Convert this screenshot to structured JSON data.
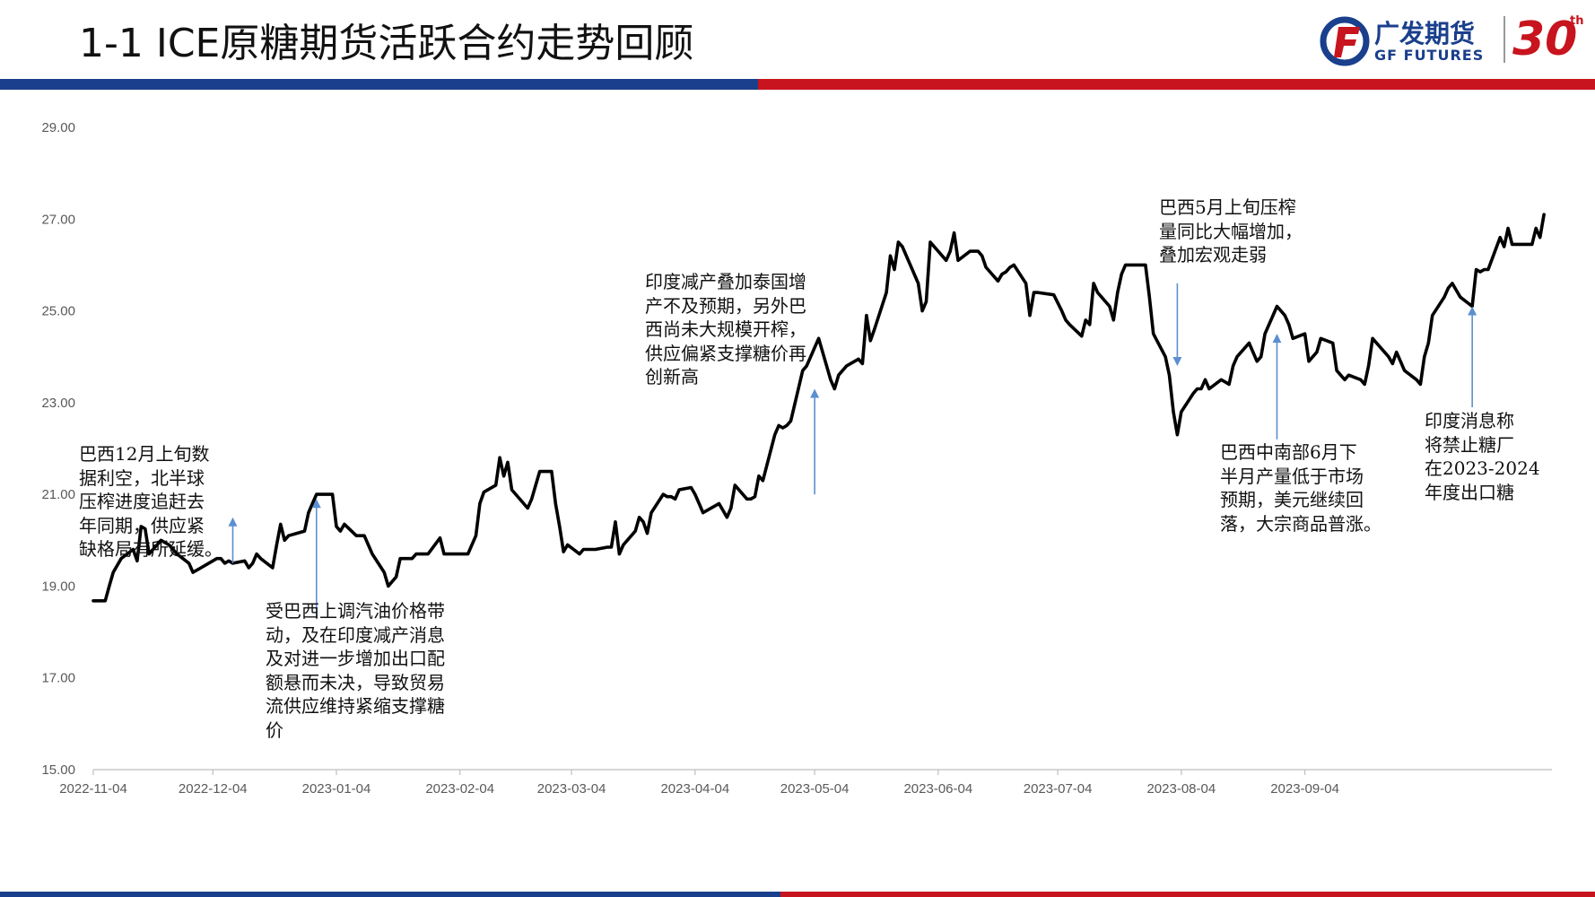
{
  "header": {
    "title": "1-1 ICE原糖期货活跃合约走势回顾",
    "logo_cn": "广发期货",
    "logo_en": "GF FUTURES",
    "logo_anniversary": "30",
    "logo_anniversary_suffix": "th",
    "brand_blue": "#1a3f8c",
    "brand_red": "#c8141e"
  },
  "chart_data": {
    "type": "line",
    "title": "",
    "xlabel": "",
    "ylabel": "",
    "ylim": [
      15,
      29
    ],
    "yticks": [
      "15.00",
      "17.00",
      "19.00",
      "21.00",
      "23.00",
      "25.00",
      "27.00",
      "29.00"
    ],
    "xticks": [
      {
        "date": "2022-11-04",
        "label": "2022-11-04"
      },
      {
        "date": "2022-12-04",
        "label": "2022-12-04"
      },
      {
        "date": "2023-01-04",
        "label": "2023-01-04"
      },
      {
        "date": "2023-02-04",
        "label": "2023-02-04"
      },
      {
        "date": "2023-03-04",
        "label": "2023-03-04"
      },
      {
        "date": "2023-04-04",
        "label": "2023-04-04"
      },
      {
        "date": "2023-05-04",
        "label": "2023-05-04"
      },
      {
        "date": "2023-06-04",
        "label": "2023-06-04"
      },
      {
        "date": "2023-07-04",
        "label": "2023-07-04"
      },
      {
        "date": "2023-08-04",
        "label": "2023-08-04"
      },
      {
        "date": "2023-09-04",
        "label": "2023-09-04"
      }
    ],
    "grid": false,
    "line_color": "#000000",
    "arrow_color": "#5b8fd0",
    "series": [
      {
        "name": "",
        "points": [
          [
            "2022-11-04",
            18.68
          ],
          [
            "2022-11-07",
            18.68
          ],
          [
            "2022-11-08",
            19.0
          ],
          [
            "2022-11-09",
            19.3
          ],
          [
            "2022-11-11",
            19.6
          ],
          [
            "2022-11-14",
            19.8
          ],
          [
            "2022-11-15",
            19.55
          ],
          [
            "2022-11-16",
            20.3
          ],
          [
            "2022-11-17",
            20.25
          ],
          [
            "2022-11-18",
            19.7
          ],
          [
            "2022-11-21",
            20.0
          ],
          [
            "2022-11-23",
            19.9
          ],
          [
            "2022-11-25",
            19.7
          ],
          [
            "2022-11-28",
            19.5
          ],
          [
            "2022-11-29",
            19.3
          ],
          [
            "2022-12-01",
            19.4
          ],
          [
            "2022-12-02",
            19.45
          ],
          [
            "2022-12-05",
            19.6
          ],
          [
            "2022-12-06",
            19.6
          ],
          [
            "2022-12-07",
            19.5
          ],
          [
            "2022-12-08",
            19.55
          ],
          [
            "2022-12-09",
            19.5
          ],
          [
            "2022-12-12",
            19.55
          ],
          [
            "2022-12-13",
            19.4
          ],
          [
            "2022-12-14",
            19.5
          ],
          [
            "2022-12-15",
            19.7
          ],
          [
            "2022-12-16",
            19.6
          ],
          [
            "2022-12-19",
            19.4
          ],
          [
            "2022-12-20",
            19.9
          ],
          [
            "2022-12-21",
            20.35
          ],
          [
            "2022-12-22",
            20.0
          ],
          [
            "2022-12-23",
            20.1
          ],
          [
            "2022-12-27",
            20.2
          ],
          [
            "2022-12-28",
            20.6
          ],
          [
            "2022-12-29",
            20.8
          ],
          [
            "2022-12-30",
            21.0
          ],
          [
            "2023-01-03",
            21.0
          ],
          [
            "2023-01-04",
            20.3
          ],
          [
            "2023-01-05",
            20.2
          ],
          [
            "2023-01-06",
            20.35
          ],
          [
            "2023-01-09",
            20.1
          ],
          [
            "2023-01-10",
            20.1
          ],
          [
            "2023-01-11",
            20.1
          ],
          [
            "2023-01-13",
            19.7
          ],
          [
            "2023-01-16",
            19.3
          ],
          [
            "2023-01-17",
            19.0
          ],
          [
            "2023-01-18",
            19.1
          ],
          [
            "2023-01-19",
            19.2
          ],
          [
            "2023-01-20",
            19.6
          ],
          [
            "2023-01-23",
            19.6
          ],
          [
            "2023-01-24",
            19.7
          ],
          [
            "2023-01-25",
            19.7
          ],
          [
            "2023-01-27",
            19.7
          ],
          [
            "2023-01-30",
            20.05
          ],
          [
            "2023-01-31",
            19.7
          ],
          [
            "2023-02-03",
            19.7
          ],
          [
            "2023-02-06",
            19.7
          ],
          [
            "2023-02-08",
            20.1
          ],
          [
            "2023-02-09",
            20.8
          ],
          [
            "2023-02-10",
            21.05
          ],
          [
            "2023-02-13",
            21.2
          ],
          [
            "2023-02-14",
            21.8
          ],
          [
            "2023-02-15",
            21.4
          ],
          [
            "2023-02-16",
            21.7
          ],
          [
            "2023-02-17",
            21.1
          ],
          [
            "2023-02-21",
            20.7
          ],
          [
            "2023-02-22",
            20.9
          ],
          [
            "2023-02-24",
            21.5
          ],
          [
            "2023-02-27",
            21.5
          ],
          [
            "2023-02-28",
            20.8
          ],
          [
            "2023-03-01",
            20.3
          ],
          [
            "2023-03-02",
            19.75
          ],
          [
            "2023-03-03",
            19.9
          ],
          [
            "2023-03-06",
            19.7
          ],
          [
            "2023-03-07",
            19.8
          ],
          [
            "2023-03-08",
            19.8
          ],
          [
            "2023-03-10",
            19.8
          ],
          [
            "2023-03-13",
            19.85
          ],
          [
            "2023-03-14",
            19.85
          ],
          [
            "2023-03-15",
            20.4
          ],
          [
            "2023-03-16",
            19.7
          ],
          [
            "2023-03-17",
            19.9
          ],
          [
            "2023-03-20",
            20.2
          ],
          [
            "2023-03-21",
            20.5
          ],
          [
            "2023-03-22",
            20.4
          ],
          [
            "2023-03-23",
            20.15
          ],
          [
            "2023-03-24",
            20.6
          ],
          [
            "2023-03-27",
            21.0
          ],
          [
            "2023-03-28",
            20.95
          ],
          [
            "2023-03-29",
            20.95
          ],
          [
            "2023-03-30",
            20.9
          ],
          [
            "2023-03-31",
            21.1
          ],
          [
            "2023-04-03",
            21.15
          ],
          [
            "2023-04-04",
            21.0
          ],
          [
            "2023-04-05",
            20.8
          ],
          [
            "2023-04-06",
            20.6
          ],
          [
            "2023-04-10",
            20.8
          ],
          [
            "2023-04-12",
            20.5
          ],
          [
            "2023-04-13",
            20.7
          ],
          [
            "2023-04-14",
            21.2
          ],
          [
            "2023-04-17",
            20.9
          ],
          [
            "2023-04-18",
            20.9
          ],
          [
            "2023-04-19",
            20.95
          ],
          [
            "2023-04-20",
            21.4
          ],
          [
            "2023-04-21",
            21.3
          ],
          [
            "2023-04-24",
            22.3
          ],
          [
            "2023-04-25",
            22.5
          ],
          [
            "2023-04-26",
            22.45
          ],
          [
            "2023-04-27",
            22.5
          ],
          [
            "2023-04-28",
            22.6
          ],
          [
            "2023-05-01",
            23.7
          ],
          [
            "2023-05-02",
            23.8
          ],
          [
            "2023-05-03",
            24.0
          ],
          [
            "2023-05-04",
            24.2
          ],
          [
            "2023-05-05",
            24.4
          ],
          [
            "2023-05-08",
            23.5
          ],
          [
            "2023-05-09",
            23.3
          ],
          [
            "2023-05-10",
            23.6
          ],
          [
            "2023-05-12",
            23.8
          ],
          [
            "2023-05-15",
            23.95
          ],
          [
            "2023-05-16",
            23.85
          ],
          [
            "2023-05-17",
            24.9
          ],
          [
            "2023-05-18",
            24.35
          ],
          [
            "2023-05-19",
            24.6
          ],
          [
            "2023-05-22",
            25.4
          ],
          [
            "2023-05-23",
            26.2
          ],
          [
            "2023-05-24",
            25.9
          ],
          [
            "2023-05-25",
            26.5
          ],
          [
            "2023-05-26",
            26.4
          ],
          [
            "2023-05-30",
            25.6
          ],
          [
            "2023-05-31",
            25.0
          ],
          [
            "2023-06-01",
            25.2
          ],
          [
            "2023-06-02",
            26.5
          ],
          [
            "2023-06-05",
            26.2
          ],
          [
            "2023-06-06",
            26.1
          ],
          [
            "2023-06-07",
            26.3
          ],
          [
            "2023-06-08",
            26.7
          ],
          [
            "2023-06-09",
            26.1
          ],
          [
            "2023-06-12",
            26.3
          ],
          [
            "2023-06-14",
            26.3
          ],
          [
            "2023-06-15",
            26.2
          ],
          [
            "2023-06-16",
            25.95
          ],
          [
            "2023-06-19",
            25.65
          ],
          [
            "2023-06-20",
            25.8
          ],
          [
            "2023-06-21",
            25.85
          ],
          [
            "2023-06-22",
            25.95
          ],
          [
            "2023-06-23",
            26.0
          ],
          [
            "2023-06-26",
            25.6
          ],
          [
            "2023-06-27",
            24.9
          ],
          [
            "2023-06-28",
            25.4
          ],
          [
            "2023-06-29",
            25.4
          ],
          [
            "2023-07-03",
            25.35
          ],
          [
            "2023-07-05",
            25.0
          ],
          [
            "2023-07-06",
            24.8
          ],
          [
            "2023-07-07",
            24.7
          ],
          [
            "2023-07-10",
            24.45
          ],
          [
            "2023-07-11",
            24.8
          ],
          [
            "2023-07-12",
            24.7
          ],
          [
            "2023-07-13",
            25.6
          ],
          [
            "2023-07-14",
            25.4
          ],
          [
            "2023-07-17",
            25.1
          ],
          [
            "2023-07-18",
            24.8
          ],
          [
            "2023-07-19",
            25.4
          ],
          [
            "2023-07-20",
            25.8
          ],
          [
            "2023-07-21",
            26.0
          ],
          [
            "2023-07-24",
            26.0
          ],
          [
            "2023-07-25",
            26.0
          ],
          [
            "2023-07-26",
            26.0
          ],
          [
            "2023-07-27",
            25.3
          ],
          [
            "2023-07-28",
            24.5
          ],
          [
            "2023-07-31",
            24.0
          ],
          [
            "2023-08-01",
            23.6
          ],
          [
            "2023-08-02",
            22.8
          ],
          [
            "2023-08-03",
            22.3
          ],
          [
            "2023-08-04",
            22.8
          ],
          [
            "2023-08-07",
            23.2
          ],
          [
            "2023-08-08",
            23.3
          ],
          [
            "2023-08-09",
            23.3
          ],
          [
            "2023-08-10",
            23.5
          ],
          [
            "2023-08-11",
            23.3
          ],
          [
            "2023-08-14",
            23.5
          ],
          [
            "2023-08-15",
            23.45
          ],
          [
            "2023-08-16",
            23.4
          ],
          [
            "2023-08-17",
            23.8
          ],
          [
            "2023-08-18",
            24.0
          ],
          [
            "2023-08-21",
            24.3
          ],
          [
            "2023-08-22",
            24.1
          ],
          [
            "2023-08-23",
            23.9
          ],
          [
            "2023-08-24",
            24.0
          ],
          [
            "2023-08-25",
            24.5
          ],
          [
            "2023-08-28",
            25.1
          ],
          [
            "2023-08-29",
            25.0
          ],
          [
            "2023-08-30",
            24.9
          ],
          [
            "2023-08-31",
            24.7
          ],
          [
            "2023-09-01",
            24.4
          ],
          [
            "2023-09-04",
            24.5
          ],
          [
            "2023-09-05",
            23.9
          ],
          [
            "2023-09-06",
            24.0
          ],
          [
            "2023-09-07",
            24.1
          ],
          [
            "2023-09-08",
            24.4
          ],
          [
            "2023-09-11",
            24.3
          ],
          [
            "2023-09-12",
            23.7
          ],
          [
            "2023-09-13",
            23.6
          ],
          [
            "2023-09-14",
            23.5
          ],
          [
            "2023-09-15",
            23.6
          ],
          [
            "2023-09-18",
            23.5
          ],
          [
            "2023-09-19",
            23.4
          ],
          [
            "2023-09-20",
            23.8
          ],
          [
            "2023-09-21",
            24.4
          ],
          [
            "2023-09-22",
            24.3
          ],
          [
            "2023-09-25",
            24.0
          ],
          [
            "2023-09-26",
            23.85
          ],
          [
            "2023-09-27",
            24.1
          ],
          [
            "2023-09-28",
            23.9
          ],
          [
            "2023-09-29",
            23.7
          ],
          [
            "2023-10-02",
            23.5
          ],
          [
            "2023-10-03",
            23.4
          ],
          [
            "2023-10-04",
            24.0
          ],
          [
            "2023-10-05",
            24.3
          ],
          [
            "2023-10-06",
            24.9
          ],
          [
            "2023-10-09",
            25.3
          ],
          [
            "2023-10-10",
            25.5
          ],
          [
            "2023-10-11",
            25.6
          ],
          [
            "2023-10-12",
            25.45
          ],
          [
            "2023-10-13",
            25.3
          ],
          [
            "2023-10-16",
            25.1
          ],
          [
            "2023-10-17",
            25.9
          ],
          [
            "2023-10-18",
            25.85
          ],
          [
            "2023-10-19",
            25.9
          ],
          [
            "2023-10-20",
            25.9
          ],
          [
            "2023-10-23",
            26.6
          ],
          [
            "2023-10-24",
            26.4
          ],
          [
            "2023-10-25",
            26.8
          ],
          [
            "2023-10-26",
            26.45
          ],
          [
            "2023-10-27",
            26.45
          ],
          [
            "2023-10-30",
            26.45
          ],
          [
            "2023-10-31",
            26.45
          ],
          [
            "2023-11-01",
            26.8
          ],
          [
            "2023-11-02",
            26.6
          ],
          [
            "2023-11-03",
            27.1
          ]
        ]
      }
    ],
    "annotations": [
      {
        "text": "巴西12月上旬数\n据利空，北半球\n压榨进度追赶去\n年同期，供应紧\n缺格局有所延缓。",
        "arrow": {
          "date": "2022-12-09",
          "from": 19.5,
          "to": 20.5
        }
      },
      {
        "text": "受巴西上调汽油价格带\n动，及在印度减产消息\n及对进一步增加出口配\n额悬而未决，导致贸易\n流供应维持紧缩支撑糖\n价",
        "arrow": {
          "date": "2022-12-30",
          "from": 18.3,
          "to": 20.9
        }
      },
      {
        "text": "印度减产叠加泰国增\n产不及预期，另外巴\n西尚未大规模开榨，\n供应偏紧支撑糖价再\n创新高",
        "arrow": {
          "date": "2023-05-04",
          "from": 21.0,
          "to": 23.3
        }
      },
      {
        "text": "巴西5月上旬压榨\n量同比大幅增加，\n叠加宏观走弱",
        "arrow": {
          "date": "2023-08-03",
          "from": 25.6,
          "to": 23.8
        }
      },
      {
        "text": "巴西中南部6月下\n半月产量低于市场\n预期，美元继续回\n落，大宗商品普涨。",
        "arrow": {
          "date": "2023-08-28",
          "from": 22.2,
          "to": 24.5
        }
      },
      {
        "text": "印度消息称\n将禁止糖厂\n在2023-2024\n年度出口糖",
        "arrow": {
          "date": "2023-10-16",
          "from": 22.9,
          "to": 25.1
        }
      }
    ]
  }
}
